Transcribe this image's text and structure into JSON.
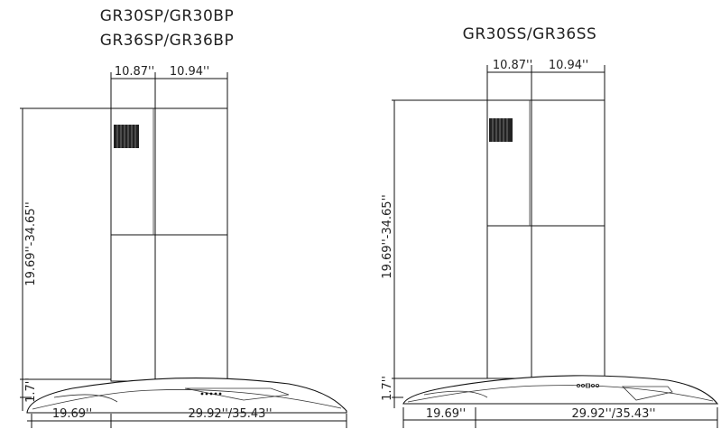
{
  "models": [
    {
      "title_line1": "GR30SP/GR30BP",
      "title_line2": "GR36SP/GR36BP",
      "chimney_left_width": "10.87''",
      "chimney_right_width": "10.94''",
      "chimney_height": "19.69''-34.65''",
      "hood_height": "1.7''",
      "hood_depth": "19.69''",
      "hood_width": "29.92''/35.43''"
    },
    {
      "title_line1": "GR30SS/GR36SS",
      "chimney_left_width": "10.87''",
      "chimney_right_width": "10.94''",
      "chimney_height": "19.69''-34.65''",
      "hood_height": "1.7''",
      "hood_depth": "19.69''",
      "hood_width": "29.92''/35.43''"
    }
  ]
}
